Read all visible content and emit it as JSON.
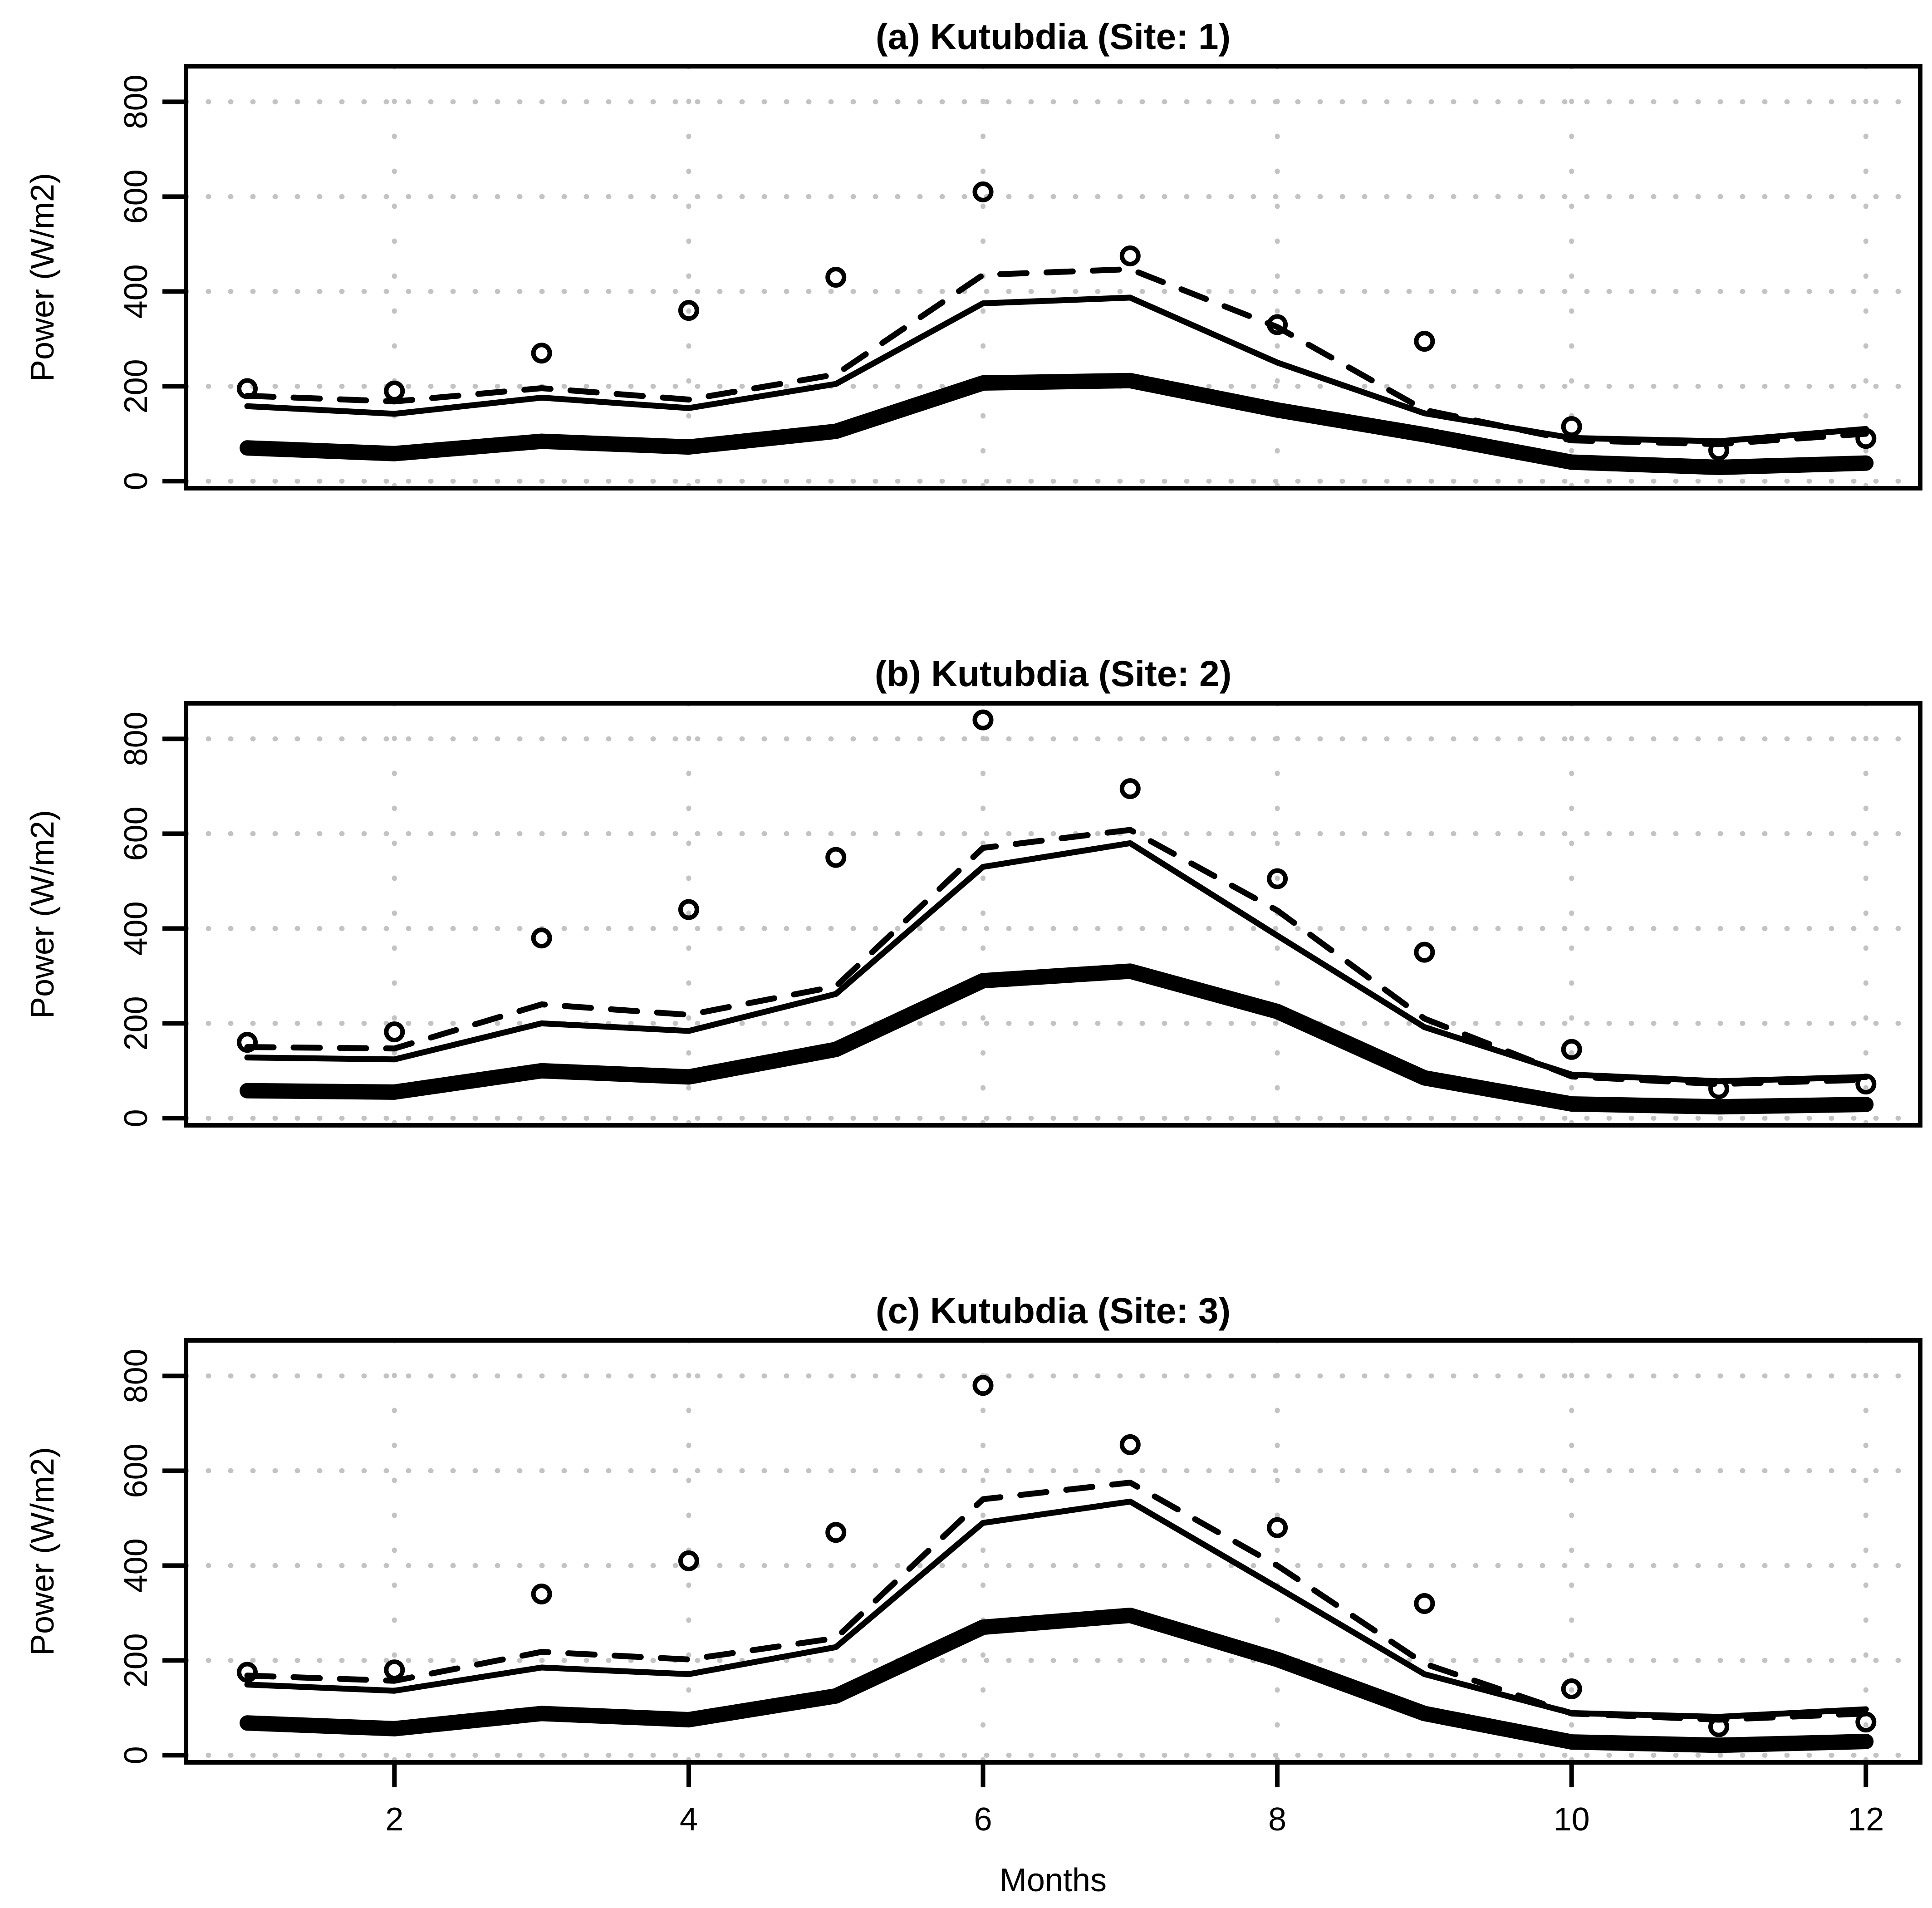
{
  "figure": {
    "background": "#ffffff",
    "text_color": "#000000",
    "grid_color": "#c3c3c3",
    "line_color": "#000000"
  },
  "chart_data": [
    {
      "type": "line",
      "title": "(a) Kutubdia (Site: 1)",
      "xlabel": "",
      "ylabel": "Power (W/m2)",
      "x": [
        1,
        2,
        3,
        4,
        5,
        6,
        7,
        8,
        9,
        10,
        11,
        12
      ],
      "xticks": [
        2,
        4,
        6,
        8,
        10,
        12
      ],
      "yticks": [
        0,
        200,
        400,
        600,
        800
      ],
      "ylim": [
        -15,
        875
      ],
      "grid": "dotted",
      "legend": "none",
      "series": [
        {
          "name": "observed-points",
          "style": "points",
          "marker": "open-circle",
          "values": [
            195,
            190,
            270,
            360,
            430,
            610,
            475,
            330,
            295,
            115,
            65,
            90
          ]
        },
        {
          "name": "dashed-line",
          "style": "dashed-line",
          "values": [
            180,
            168,
            196,
            172,
            225,
            435,
            447,
            325,
            150,
            86,
            78,
            100
          ]
        },
        {
          "name": "solid-line",
          "style": "solid-line",
          "values": [
            158,
            142,
            176,
            154,
            205,
            375,
            387,
            250,
            143,
            91,
            84,
            110
          ]
        },
        {
          "name": "bold-line",
          "style": "bold-line",
          "values": [
            70,
            58,
            84,
            72,
            105,
            207,
            212,
            150,
            98,
            40,
            29,
            38
          ]
        }
      ]
    },
    {
      "type": "line",
      "title": "(b) Kutubdia (Site: 2)",
      "xlabel": "",
      "ylabel": "Power (W/m2)",
      "x": [
        1,
        2,
        3,
        4,
        5,
        6,
        7,
        8,
        9,
        10,
        11,
        12
      ],
      "xticks": [
        2,
        4,
        6,
        8,
        10,
        12
      ],
      "yticks": [
        0,
        200,
        400,
        600,
        800
      ],
      "ylim": [
        -15,
        875
      ],
      "grid": "dotted",
      "legend": "none",
      "series": [
        {
          "name": "observed-points",
          "style": "points",
          "marker": "open-circle",
          "values": [
            160,
            182,
            380,
            440,
            550,
            840,
            695,
            505,
            350,
            145,
            62,
            72
          ]
        },
        {
          "name": "dashed-line",
          "style": "dashed-line",
          "values": [
            150,
            147,
            240,
            218,
            278,
            570,
            608,
            438,
            210,
            88,
            72,
            81
          ]
        },
        {
          "name": "solid-line",
          "style": "solid-line",
          "values": [
            128,
            124,
            200,
            184,
            262,
            530,
            580,
            385,
            192,
            92,
            78,
            87
          ]
        },
        {
          "name": "bold-line",
          "style": "bold-line",
          "values": [
            58,
            55,
            100,
            87,
            145,
            290,
            310,
            225,
            85,
            30,
            24,
            29
          ]
        }
      ]
    },
    {
      "type": "line",
      "title": "(c) Kutubdia (Site: 3)",
      "xlabel": "Months",
      "ylabel": "Power (W/m2)",
      "x": [
        1,
        2,
        3,
        4,
        5,
        6,
        7,
        8,
        9,
        10,
        11,
        12
      ],
      "xticks": [
        2,
        4,
        6,
        8,
        10,
        12
      ],
      "yticks": [
        0,
        200,
        400,
        600,
        800
      ],
      "ylim": [
        -15,
        875
      ],
      "grid": "dotted",
      "legend": "none",
      "series": [
        {
          "name": "observed-points",
          "style": "points",
          "marker": "open-circle",
          "values": [
            175,
            180,
            340,
            410,
            470,
            780,
            655,
            480,
            320,
            140,
            60,
            70
          ]
        },
        {
          "name": "dashed-line",
          "style": "dashed-line",
          "values": [
            168,
            157,
            218,
            202,
            247,
            540,
            575,
            400,
            193,
            88,
            75,
            88
          ]
        },
        {
          "name": "solid-line",
          "style": "solid-line",
          "values": [
            149,
            136,
            185,
            171,
            228,
            490,
            535,
            354,
            171,
            89,
            81,
            97
          ]
        },
        {
          "name": "bold-line",
          "style": "bold-line",
          "values": [
            68,
            56,
            88,
            75,
            125,
            270,
            295,
            202,
            88,
            28,
            21,
            29
          ]
        }
      ]
    }
  ]
}
